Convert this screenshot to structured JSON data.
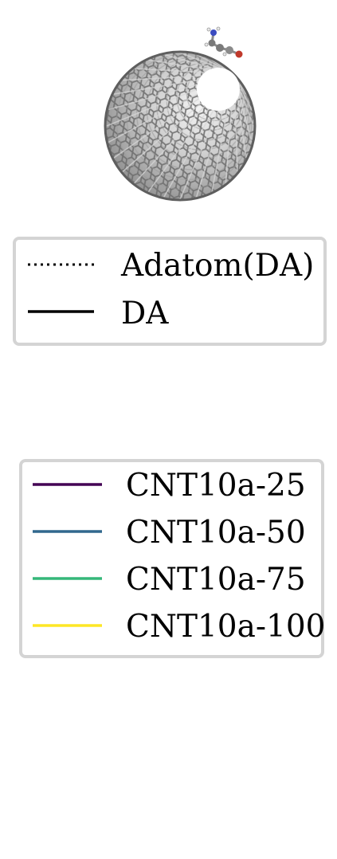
{
  "chart_data": {
    "type": "line",
    "style_legend": {
      "entries": [
        {
          "label": "Adatom(DA)",
          "linestyle": "dotted",
          "color": "#000000"
        },
        {
          "label": "DA",
          "linestyle": "solid",
          "color": "#000000"
        }
      ]
    },
    "series_legend": {
      "entries": [
        {
          "label": "CNT10a-25",
          "color": "#440154"
        },
        {
          "label": "CNT10a-50",
          "color": "#31688e"
        },
        {
          "label": "CNT10a-75",
          "color": "#35b779"
        },
        {
          "label": "CNT10a-100",
          "color": "#fde725"
        }
      ]
    },
    "inset_image": "carbon-nanotube-with-adsorbed-molecule",
    "colors": {
      "tube_dark": "#6e6e6e",
      "tube_mid": "#9a9a9a",
      "tube_light": "#d8d8d8",
      "atom_n": "#3b4cc0",
      "atom_o": "#c0392b",
      "atom_c": "#7a7a7a"
    }
  }
}
